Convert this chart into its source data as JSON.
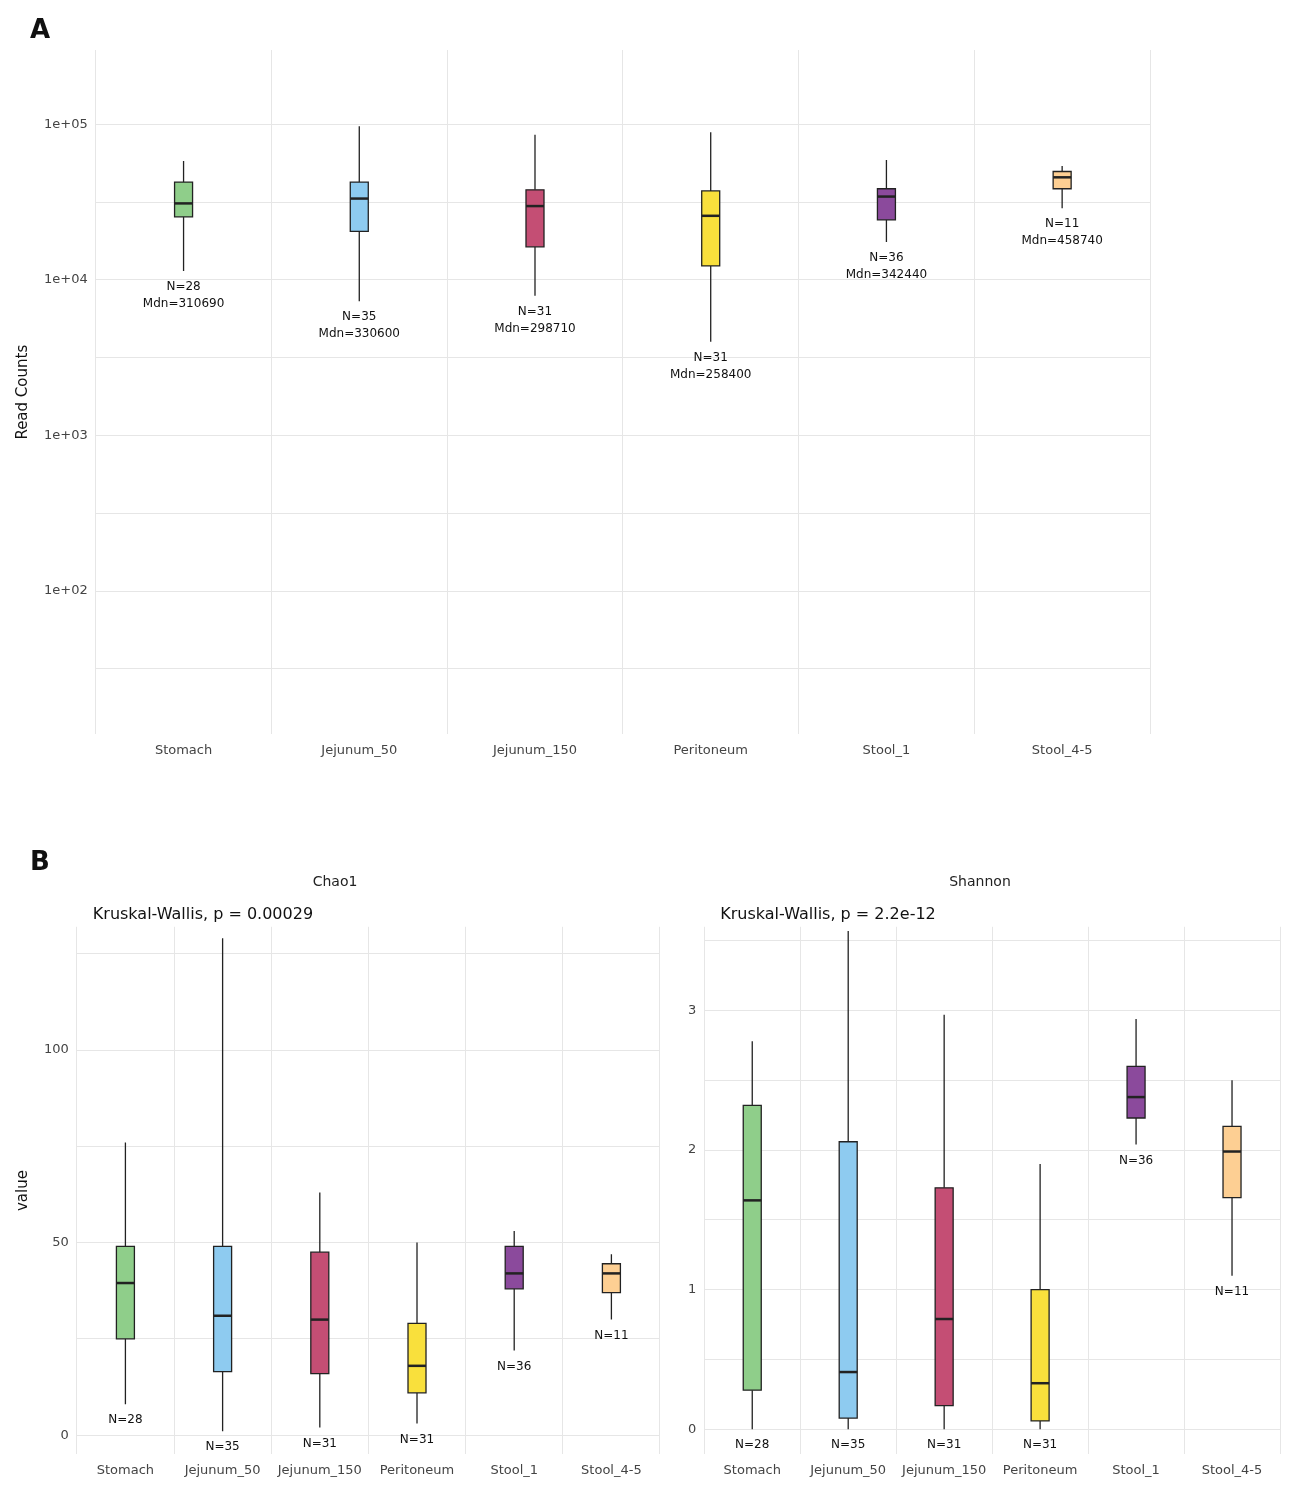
{
  "chart_data": [
    {
      "type": "box",
      "ylabel": "Read Counts",
      "log": true,
      "grid": true,
      "categories": [
        "Stomach",
        "Jejunum_50",
        "Jejunum_150",
        "Peritoneum",
        "Stool_1",
        "Stool_4-5"
      ],
      "colors": [
        "#8fce8a",
        "#8ecbf0",
        "#c44e74",
        "#f9e03c",
        "#8b4a9c",
        "#fdcf93"
      ],
      "ylim": [
        12,
        300000
      ],
      "yticks": [
        {
          "value": 31.6,
          "label": null
        },
        {
          "value": 100,
          "label": "1e+02"
        },
        {
          "value": 316,
          "label": null
        },
        {
          "value": 1000,
          "label": "1e+03"
        },
        {
          "value": 3160,
          "label": null
        },
        {
          "value": 10000,
          "label": "1e+04"
        },
        {
          "value": 31600,
          "label": null
        },
        {
          "value": 100000,
          "label": "1e+05"
        }
      ],
      "boxes": [
        {
          "low": 11400,
          "q1": 25400,
          "median": 31000,
          "q3": 42500,
          "high": 58000
        },
        {
          "low": 7300,
          "q1": 20500,
          "median": 33300,
          "q3": 42500,
          "high": 97000
        },
        {
          "low": 7900,
          "q1": 16300,
          "median": 29800,
          "q3": 37900,
          "high": 85500
        },
        {
          "low": 4000,
          "q1": 12300,
          "median": 25800,
          "q3": 37300,
          "high": 89000
        },
        {
          "low": 17500,
          "q1": 24300,
          "median": 34300,
          "q3": 38500,
          "high": 59000
        },
        {
          "low": 28900,
          "q1": 38500,
          "median": 45600,
          "q3": 49700,
          "high": 54000
        }
      ],
      "annotations": [
        "A",
        "N=28\nMdn=310690",
        "N=35\nMdn=330600",
        "N=31\nMdn=298710",
        "N=31\nMdn=258400",
        "N=36\nMdn=342440",
        "N=11\nMdn=458740"
      ]
    },
    {
      "type": "box",
      "title": "Chao1",
      "ylabel": "value",
      "grid": true,
      "categories": [
        "Stomach",
        "Jejunum_50",
        "Jejunum_150",
        "Peritoneum",
        "Stool_1",
        "Stool_4-5"
      ],
      "colors": [
        "#8fce8a",
        "#8ecbf0",
        "#c44e74",
        "#f9e03c",
        "#8b4a9c",
        "#fdcf93"
      ],
      "ylim": [
        -5,
        132
      ],
      "yticks": [
        0,
        {
          "value": 25,
          "label": null
        },
        50,
        {
          "value": 75,
          "label": null
        },
        100,
        {
          "value": 125,
          "label": null
        }
      ],
      "boxes": [
        {
          "low": 8,
          "q1": 25,
          "median": 39.5,
          "q3": 49,
          "high": 76
        },
        {
          "low": 1,
          "q1": 16.5,
          "median": 31,
          "q3": 49,
          "high": 129
        },
        {
          "low": 2,
          "q1": 16,
          "median": 30,
          "q3": 47.5,
          "high": 63
        },
        {
          "low": 3,
          "q1": 11,
          "median": 18,
          "q3": 29,
          "high": 50
        },
        {
          "low": 22,
          "q1": 38,
          "median": 42,
          "q3": 49,
          "high": 53
        },
        {
          "low": 30,
          "q1": 37,
          "median": 42,
          "q3": 44.5,
          "high": 47
        }
      ],
      "annotations": [
        "B",
        "Kruskal-Wallis, p = 0.00029",
        "N=28",
        "N=35",
        "N=31",
        "N=31",
        "N=36",
        "N=11"
      ]
    },
    {
      "type": "box",
      "title": "Shannon",
      "grid": true,
      "categories": [
        "Stomach",
        "Jejunum_50",
        "Jejunum_150",
        "Peritoneum",
        "Stool_1",
        "Stool_4-5"
      ],
      "colors": [
        "#8fce8a",
        "#8ecbf0",
        "#c44e74",
        "#f9e03c",
        "#8b4a9c",
        "#fdcf93"
      ],
      "ylim": [
        -0.18,
        3.6
      ],
      "yticks": [
        0,
        {
          "value": 0.5,
          "label": null
        },
        1,
        {
          "value": 1.5,
          "label": null
        },
        2,
        {
          "value": 2.5,
          "label": null
        },
        3,
        {
          "value": 3.5,
          "label": null
        }
      ],
      "boxes": [
        {
          "low": 0,
          "q1": 0.28,
          "median": 1.64,
          "q3": 2.32,
          "high": 2.78
        },
        {
          "low": 0,
          "q1": 0.08,
          "median": 0.41,
          "q3": 2.06,
          "high": 3.57
        },
        {
          "low": 0,
          "q1": 0.17,
          "median": 0.79,
          "q3": 1.73,
          "high": 2.97
        },
        {
          "low": 0,
          "q1": 0.06,
          "median": 0.33,
          "q3": 1.0,
          "high": 1.9
        },
        {
          "low": 2.04,
          "q1": 2.23,
          "median": 2.38,
          "q3": 2.6,
          "high": 2.94
        },
        {
          "low": 1.1,
          "q1": 1.66,
          "median": 1.99,
          "q3": 2.17,
          "high": 2.5
        }
      ],
      "annotations": [
        "Kruskal-Wallis, p = 2.2e-12",
        "N=28",
        "N=35",
        "N=31",
        "N=31",
        "N=36",
        "N=11"
      ]
    }
  ]
}
